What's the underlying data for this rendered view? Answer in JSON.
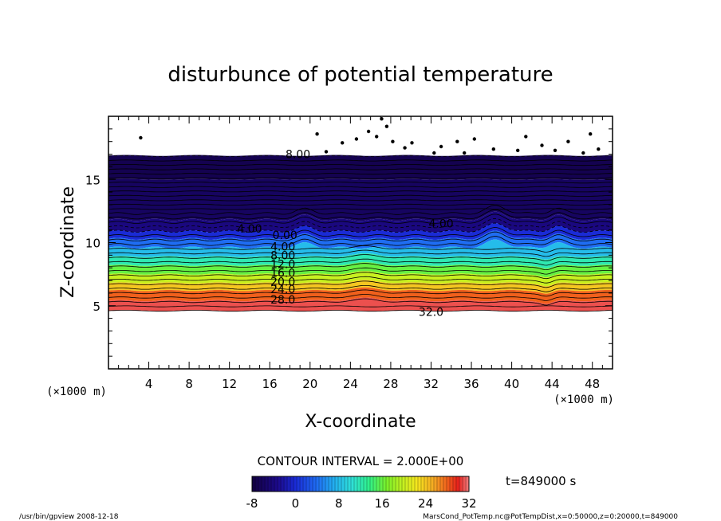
{
  "chart_data": {
    "type": "heatmap",
    "title": "disturbunce of potential temperature",
    "xlabel": "X-coordinate",
    "ylabel": "Z-coordinate",
    "x_unit": "(×1000 m)",
    "y_unit": "(×1000 m)",
    "xlim": [
      0,
      50
    ],
    "ylim": [
      0,
      20
    ],
    "x_ticks": [
      4,
      8,
      12,
      16,
      20,
      24,
      28,
      32,
      36,
      40,
      44,
      48
    ],
    "y_ticks": [
      5,
      10,
      15
    ],
    "contour_interval_text": "CONTOUR INTERVAL = 2.000E+00",
    "time_text": "t=849000 s",
    "colorbar": {
      "min": -8,
      "max": 32,
      "tick_labels": [
        "-8",
        "0",
        "8",
        "16",
        "24",
        "32"
      ],
      "tick_values": [
        -8,
        0,
        8,
        16,
        24,
        32
      ]
    },
    "contour_labels": [
      {
        "text": "8.00",
        "x": 18.8,
        "z": 17.0
      },
      {
        "text": "4.00",
        "x": 14.0,
        "z": 11.1
      },
      {
        "text": "4.00",
        "x": 33.0,
        "z": 11.5
      },
      {
        "text": "0.00",
        "x": 17.5,
        "z": 10.6
      },
      {
        "text": "4.00",
        "x": 17.3,
        "z": 9.7
      },
      {
        "text": "8.00",
        "x": 17.3,
        "z": 9.0
      },
      {
        "text": "12.0",
        "x": 17.3,
        "z": 8.3
      },
      {
        "text": "16.0",
        "x": 17.3,
        "z": 7.6
      },
      {
        "text": "20.0",
        "x": 17.3,
        "z": 6.9
      },
      {
        "text": "24.0",
        "x": 17.3,
        "z": 6.3
      },
      {
        "text": "28.0",
        "x": 17.3,
        "z": 5.5
      },
      {
        "text": "32.0",
        "x": 32.0,
        "z": 4.5
      }
    ],
    "field_layers": [
      {
        "z_top": 16.9,
        "z_bottom": 15.0,
        "value": -7
      },
      {
        "z_top": 15.0,
        "z_bottom": 11.8,
        "value": -6
      },
      {
        "z_top": 11.8,
        "z_bottom": 10.9,
        "value": -4
      },
      {
        "z_top": 10.9,
        "z_bottom": 10.3,
        "value": 0
      },
      {
        "z_top": 10.3,
        "z_bottom": 9.6,
        "value": 4
      },
      {
        "z_top": 9.6,
        "z_bottom": 8.9,
        "value": 8
      },
      {
        "z_top": 8.9,
        "z_bottom": 8.2,
        "value": 12
      },
      {
        "z_top": 8.2,
        "z_bottom": 7.5,
        "value": 16
      },
      {
        "z_top": 7.5,
        "z_bottom": 6.8,
        "value": 20
      },
      {
        "z_top": 6.8,
        "z_bottom": 6.2,
        "value": 24
      },
      {
        "z_top": 6.2,
        "z_bottom": 5.4,
        "value": 28
      },
      {
        "z_top": 5.4,
        "z_bottom": 4.6,
        "value": 31
      }
    ]
  },
  "footer": {
    "left": "/usr/bin/gpview  2008-12-18",
    "right": "MarsCond_PotTemp.nc@PotTempDist,x=0:50000,z=0:20000,t=849000"
  },
  "colors": {
    "palette": [
      "#120040",
      "#1c0a8c",
      "#1a2bd6",
      "#1f6df2",
      "#22b0f0",
      "#2fe0d8",
      "#2ff08a",
      "#7af02a",
      "#c8f020",
      "#f5e61e",
      "#f5a623",
      "#f0601c",
      "#e8201c",
      "#f08080"
    ]
  }
}
